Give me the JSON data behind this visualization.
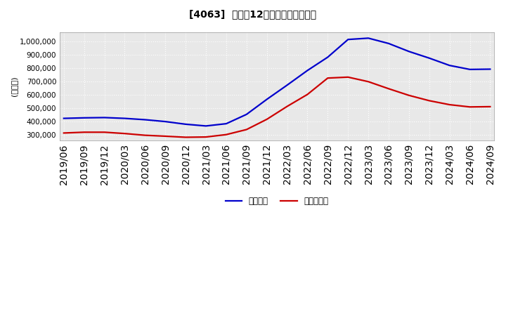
{
  "title": "[4063]  利益だ12か月移動合計の推移",
  "ylabel": "(百万円)",
  "legend_labels": [
    "経常利益",
    "当期純利益"
  ],
  "line_colors": [
    "#0000cc",
    "#cc0000"
  ],
  "background_color": "#ffffff",
  "plot_bg_color": "#e8e8e8",
  "grid_color": "#ffffff",
  "ylim": [
    255000,
    1070000
  ],
  "yticks": [
    300000,
    400000,
    500000,
    600000,
    700000,
    800000,
    900000,
    1000000
  ],
  "dates": [
    "2019/06",
    "2019/09",
    "2019/12",
    "2020/03",
    "2020/06",
    "2020/09",
    "2020/12",
    "2021/03",
    "2021/06",
    "2021/09",
    "2021/12",
    "2022/03",
    "2022/06",
    "2022/09",
    "2022/12",
    "2023/03",
    "2023/06",
    "2023/09",
    "2023/12",
    "2024/03",
    "2024/06",
    "2024/09"
  ],
  "keijo_rieki": [
    422000,
    426000,
    428000,
    422000,
    412000,
    398000,
    378000,
    365000,
    382000,
    452000,
    565000,
    672000,
    782000,
    882000,
    1015000,
    1025000,
    985000,
    925000,
    875000,
    820000,
    790000,
    792000
  ],
  "touki_jun_rieki": [
    312000,
    318000,
    318000,
    308000,
    295000,
    288000,
    280000,
    282000,
    300000,
    338000,
    415000,
    512000,
    602000,
    725000,
    732000,
    698000,
    645000,
    595000,
    555000,
    525000,
    508000,
    510000
  ]
}
